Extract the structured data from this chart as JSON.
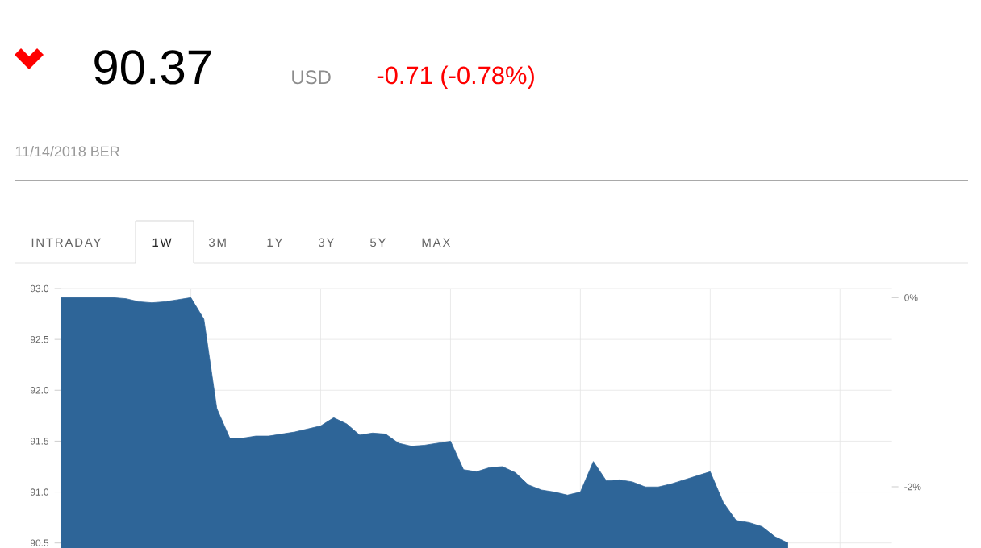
{
  "chart_data": {
    "type": "area",
    "title": "90.37",
    "subtitle": "11/14/2018 BER",
    "annotations": [
      "USD",
      "-0.71 (-0.78%)",
      "INTRADAY",
      "1W",
      "3M",
      "1Y",
      "3Y",
      "5Y",
      "MAX"
    ],
    "categories": [
      null,
      null,
      null,
      null,
      null,
      null,
      null,
      null,
      null,
      null,
      null,
      null,
      null,
      null,
      null,
      null,
      null,
      null,
      null,
      null,
      null,
      null,
      null,
      null,
      null,
      null,
      null,
      null,
      null,
      null,
      null,
      null,
      null,
      null,
      null,
      null,
      null,
      null,
      null,
      null,
      null,
      null,
      null,
      null,
      null,
      null,
      null,
      null,
      null,
      null,
      null,
      null,
      null,
      null,
      null,
      null,
      null,
      null,
      null,
      null,
      null,
      null,
      null,
      null,
      null
    ],
    "series": [
      {
        "color": "#2e6598",
        "values": [
          92.91,
          92.91,
          92.91,
          92.91,
          92.91,
          92.9,
          92.87,
          92.86,
          92.87,
          92.89,
          92.91,
          92.7,
          91.82,
          91.53,
          91.53,
          91.55,
          91.55,
          91.57,
          91.59,
          91.62,
          91.65,
          91.73,
          91.67,
          91.56,
          91.58,
          91.57,
          91.48,
          91.45,
          91.46,
          91.48,
          91.5,
          91.22,
          91.2,
          91.24,
          91.25,
          91.19,
          91.07,
          91.02,
          91.0,
          90.97,
          91.0,
          91.3,
          91.11,
          91.12,
          91.1,
          91.05,
          91.05,
          91.08,
          91.12,
          91.16,
          91.2,
          90.9,
          90.72,
          90.7,
          90.66,
          90.56,
          90.5,
          null,
          null,
          null,
          null,
          null,
          null,
          null,
          null
        ]
      }
    ],
    "ylim": [
      90.45,
      93.0
    ],
    "y2lim": [
      -2.648,
      0.097
    ],
    "yticks": [
      {
        "value": 90.5,
        "label": "90.5"
      },
      {
        "value": 91,
        "label": "91.0"
      },
      {
        "value": 91.5,
        "label": "91.5"
      },
      {
        "value": 92,
        "label": "92.0"
      },
      {
        "value": 92.5,
        "label": "92.5"
      },
      {
        "value": 93,
        "label": "93.0"
      }
    ],
    "y2ticks": [
      {
        "value": -2,
        "label": "-2%"
      },
      {
        "value": 0,
        "label": "0%"
      }
    ],
    "grid": true,
    "tick_labels": "y"
  }
}
